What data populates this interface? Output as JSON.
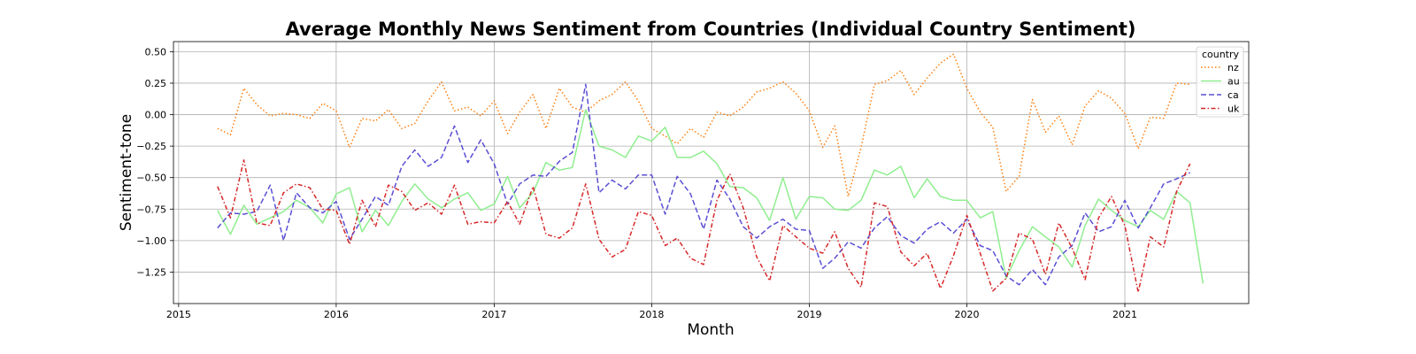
{
  "chart_data": {
    "type": "line",
    "title": "Average Monthly News Sentiment from Countries (Individual Country Sentiment)",
    "xlabel": "Month",
    "ylabel": "Sentiment-tone",
    "x_ticks": [
      "2015",
      "2016",
      "2017",
      "2018",
      "2019",
      "2020",
      "2021"
    ],
    "y_ticks": [
      "0.50",
      "0.25",
      "0.00",
      "−0.25",
      "−0.50",
      "−0.75",
      "−1.00",
      "−1.25"
    ],
    "y_tick_values": [
      0.5,
      0.25,
      0.0,
      -0.25,
      -0.5,
      -0.75,
      -1.0,
      -1.25
    ],
    "xlim": [
      "2014-12-20",
      "2021-10-15"
    ],
    "ylim": [
      -1.5,
      0.58
    ],
    "grid": true,
    "legend": {
      "title": "country",
      "placement": "top-right"
    },
    "x_start": "2015-04",
    "series": [
      {
        "name": "nz",
        "color": "#ff7f0e",
        "dash": "dotted",
        "values": [
          -0.11,
          -0.16,
          0.21,
          0.08,
          -0.01,
          0.01,
          0.0,
          -0.03,
          0.09,
          0.03,
          -0.26,
          -0.03,
          -0.05,
          0.04,
          -0.11,
          -0.07,
          0.11,
          0.26,
          0.03,
          0.06,
          -0.01,
          0.11,
          -0.15,
          0.02,
          0.16,
          -0.11,
          0.21,
          0.06,
          0.02,
          0.11,
          0.16,
          0.26,
          0.11,
          -0.11,
          -0.17,
          -0.23,
          -0.11,
          -0.18,
          0.02,
          -0.01,
          0.06,
          0.18,
          0.21,
          0.26,
          0.17,
          0.03,
          -0.26,
          -0.09,
          -0.65,
          -0.26,
          0.24,
          0.27,
          0.35,
          0.16,
          0.29,
          0.41,
          0.48,
          0.21,
          0.02,
          -0.1,
          -0.61,
          -0.49,
          0.12,
          -0.14,
          -0.01,
          -0.24,
          0.07,
          0.19,
          0.13,
          0.01,
          -0.27,
          -0.02,
          -0.03,
          0.25,
          0.24
        ]
      },
      {
        "name": "au",
        "color": "#90ee90",
        "dash": "solid",
        "values": [
          -0.76,
          -0.95,
          -0.72,
          -0.87,
          -0.82,
          -0.77,
          -0.68,
          -0.74,
          -0.86,
          -0.63,
          -0.58,
          -0.93,
          -0.76,
          -0.88,
          -0.69,
          -0.55,
          -0.67,
          -0.74,
          -0.67,
          -0.62,
          -0.76,
          -0.71,
          -0.49,
          -0.74,
          -0.62,
          -0.38,
          -0.44,
          -0.42,
          0.04,
          -0.25,
          -0.28,
          -0.34,
          -0.17,
          -0.21,
          -0.1,
          -0.34,
          -0.34,
          -0.29,
          -0.39,
          -0.57,
          -0.58,
          -0.66,
          -0.84,
          -0.5,
          -0.83,
          -0.65,
          -0.66,
          -0.75,
          -0.76,
          -0.68,
          -0.44,
          -0.48,
          -0.41,
          -0.66,
          -0.51,
          -0.65,
          -0.68,
          -0.68,
          -0.82,
          -0.77,
          -1.3,
          -1.08,
          -0.89,
          -0.97,
          -1.05,
          -1.21,
          -0.88,
          -0.67,
          -0.76,
          -0.84,
          -0.89,
          -0.76,
          -0.83,
          -0.61,
          -0.7,
          -1.34
        ]
      },
      {
        "name": "ca",
        "color": "#5b4fd4",
        "dash": "dashed",
        "values": [
          -0.9,
          -0.78,
          -0.79,
          -0.77,
          -0.56,
          -1.0,
          -0.62,
          -0.74,
          -0.78,
          -0.69,
          -0.99,
          -0.83,
          -0.65,
          -0.72,
          -0.41,
          -0.28,
          -0.41,
          -0.34,
          -0.09,
          -0.38,
          -0.2,
          -0.39,
          -0.71,
          -0.55,
          -0.48,
          -0.49,
          -0.37,
          -0.3,
          0.24,
          -0.62,
          -0.52,
          -0.59,
          -0.48,
          -0.48,
          -0.79,
          -0.49,
          -0.63,
          -0.91,
          -0.52,
          -0.67,
          -0.89,
          -0.98,
          -0.89,
          -0.83,
          -0.91,
          -0.92,
          -1.22,
          -1.14,
          -1.01,
          -1.06,
          -0.9,
          -0.81,
          -0.96,
          -1.02,
          -0.91,
          -0.85,
          -0.94,
          -0.83,
          -1.04,
          -1.08,
          -1.28,
          -1.35,
          -1.23,
          -1.35,
          -1.13,
          -1.04,
          -0.78,
          -0.93,
          -0.89,
          -0.68,
          -0.9,
          -0.74,
          -0.55,
          -0.51,
          -0.46
        ]
      },
      {
        "name": "uk",
        "color": "#d62728",
        "dash": "dashdot",
        "values": [
          -0.57,
          -0.82,
          -0.36,
          -0.86,
          -0.88,
          -0.62,
          -0.55,
          -0.58,
          -0.75,
          -0.76,
          -1.03,
          -0.68,
          -0.89,
          -0.56,
          -0.61,
          -0.76,
          -0.7,
          -0.79,
          -0.56,
          -0.87,
          -0.85,
          -0.86,
          -0.69,
          -0.87,
          -0.57,
          -0.95,
          -0.98,
          -0.9,
          -0.55,
          -0.99,
          -1.13,
          -1.07,
          -0.77,
          -0.8,
          -1.04,
          -0.98,
          -1.14,
          -1.19,
          -0.68,
          -0.47,
          -0.74,
          -1.13,
          -1.32,
          -0.88,
          -0.97,
          -1.06,
          -1.1,
          -0.93,
          -1.22,
          -1.37,
          -0.7,
          -0.73,
          -1.09,
          -1.2,
          -1.1,
          -1.38,
          -1.12,
          -0.8,
          -1.1,
          -1.4,
          -1.3,
          -0.94,
          -0.99,
          -1.27,
          -0.86,
          -1.06,
          -1.31,
          -0.82,
          -0.65,
          -0.88,
          -1.41,
          -0.97,
          -1.05,
          -0.61,
          -0.39
        ]
      }
    ]
  }
}
